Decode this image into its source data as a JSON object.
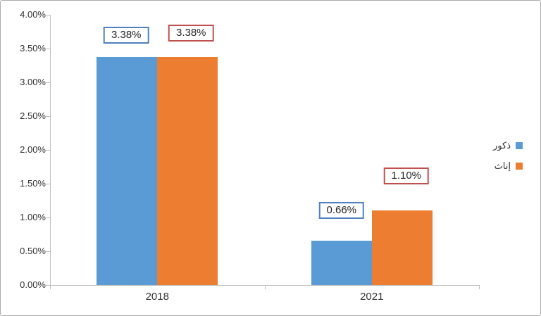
{
  "chart_data": {
    "type": "bar",
    "title": "",
    "categories": [
      "2018",
      "2021"
    ],
    "series": [
      {
        "name": "ذكور",
        "color": "#5b9bd5",
        "values": [
          3.38,
          0.66
        ],
        "data_labels": [
          "3.38%",
          "0.66%"
        ],
        "data_label_border_color": "#4e81bd"
      },
      {
        "name": "إناث",
        "color": "#ed7d31",
        "values": [
          3.38,
          1.1
        ],
        "data_labels": [
          "3.38%",
          "1.10%"
        ],
        "data_label_border_color": "#c0504d"
      }
    ],
    "ylim": [
      0,
      4.0
    ],
    "y_tick_labels": [
      "0.00%",
      "0.50%",
      "1.00%",
      "1.50%",
      "2.00%",
      "2.50%",
      "3.00%",
      "3.50%",
      "4.00%"
    ],
    "grid": false,
    "legend_position": "right"
  },
  "legend": {
    "items": [
      {
        "label": "ذكور",
        "color": "#5b9bd5"
      },
      {
        "label": "إناث",
        "color": "#ed7d31"
      }
    ]
  },
  "colors": {
    "axis": "#bfbfbf",
    "text": "#333333",
    "frame_border": "#ababab",
    "background": "#ffffff"
  }
}
